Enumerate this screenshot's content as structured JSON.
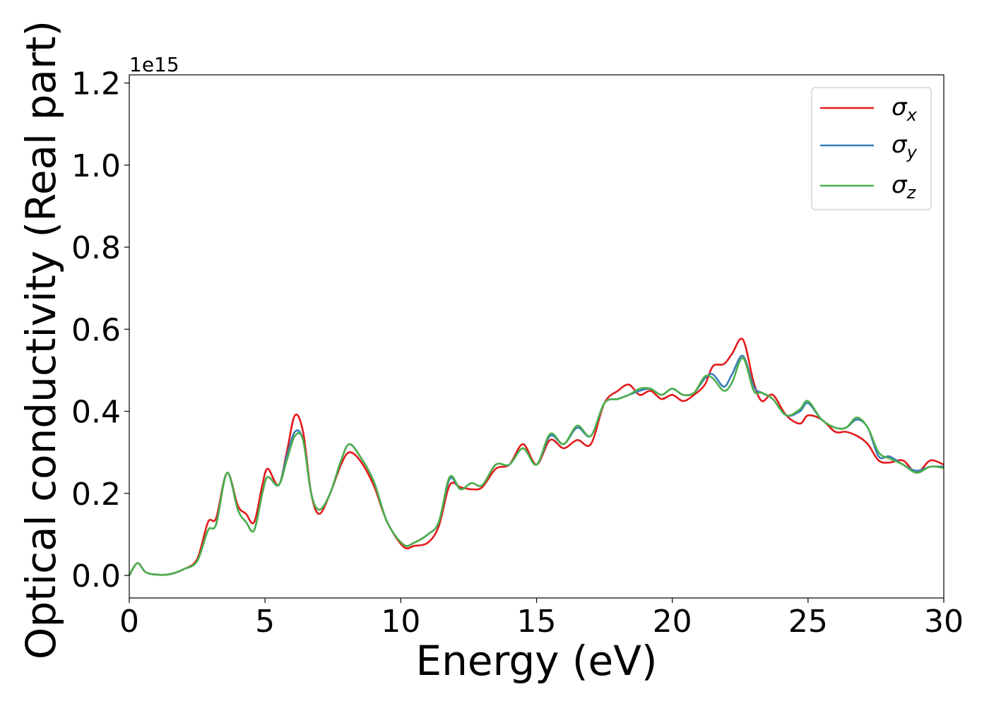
{
  "chart_data": {
    "type": "line",
    "title": "",
    "xlabel": "Energy (eV)",
    "ylabel": "Optical conductivity (Real part)",
    "y_offset_label": "1e15",
    "xlim": [
      0,
      30
    ],
    "ylim": [
      -0.055,
      1.22
    ],
    "xticks": [
      0,
      5,
      10,
      15,
      20,
      25,
      30
    ],
    "xtick_labels": [
      "0",
      "5",
      "10",
      "15",
      "20",
      "25",
      "30"
    ],
    "yticks": [
      0.0,
      0.2,
      0.4,
      0.6,
      0.8,
      1.0,
      1.2
    ],
    "ytick_labels": [
      "0.0",
      "0.2",
      "0.4",
      "0.6",
      "0.8",
      "1.0",
      "1.2"
    ],
    "grid": false,
    "legend_position": "top-right",
    "x": [
      0,
      0.3,
      0.6,
      1.0,
      1.5,
      2.0,
      2.5,
      2.9,
      3.2,
      3.6,
      4.0,
      4.3,
      4.6,
      4.9,
      5.1,
      5.5,
      5.8,
      6.1,
      6.4,
      6.7,
      7.0,
      7.4,
      7.8,
      8.1,
      8.5,
      9.0,
      9.5,
      10.1,
      10.5,
      11.0,
      11.4,
      11.8,
      12.2,
      12.6,
      13.0,
      13.5,
      14.0,
      14.5,
      15.0,
      15.5,
      16.0,
      16.5,
      17.0,
      17.5,
      18.0,
      18.4,
      18.8,
      19.2,
      19.6,
      20.0,
      20.4,
      20.8,
      21.2,
      21.5,
      21.9,
      22.2,
      22.6,
      23.0,
      23.3,
      23.7,
      24.2,
      24.7,
      25.0,
      25.5,
      26.0,
      26.4,
      26.8,
      27.2,
      27.6,
      28.0,
      28.5,
      29.0,
      29.5,
      30.0
    ],
    "series": [
      {
        "name": "σx",
        "color": "#e31a1c",
        "values": [
          0.0,
          0.03,
          0.008,
          0.002,
          0.003,
          0.015,
          0.04,
          0.13,
          0.14,
          0.25,
          0.17,
          0.15,
          0.13,
          0.22,
          0.26,
          0.22,
          0.3,
          0.39,
          0.35,
          0.2,
          0.15,
          0.2,
          0.27,
          0.3,
          0.28,
          0.22,
          0.13,
          0.07,
          0.072,
          0.08,
          0.12,
          0.22,
          0.215,
          0.21,
          0.215,
          0.26,
          0.27,
          0.32,
          0.27,
          0.33,
          0.31,
          0.33,
          0.32,
          0.42,
          0.45,
          0.465,
          0.44,
          0.45,
          0.43,
          0.44,
          0.425,
          0.44,
          0.465,
          0.51,
          0.515,
          0.54,
          0.575,
          0.47,
          0.425,
          0.44,
          0.39,
          0.37,
          0.39,
          0.38,
          0.35,
          0.35,
          0.34,
          0.32,
          0.28,
          0.275,
          0.28,
          0.25,
          0.28,
          0.27
        ]
      },
      {
        "name": "σy",
        "color": "#377eb8",
        "values": [
          0.0,
          0.03,
          0.008,
          0.002,
          0.003,
          0.015,
          0.035,
          0.11,
          0.125,
          0.25,
          0.16,
          0.13,
          0.11,
          0.2,
          0.24,
          0.22,
          0.29,
          0.35,
          0.33,
          0.2,
          0.16,
          0.2,
          0.28,
          0.32,
          0.29,
          0.23,
          0.13,
          0.075,
          0.08,
          0.1,
          0.13,
          0.235,
          0.21,
          0.225,
          0.22,
          0.27,
          0.27,
          0.31,
          0.27,
          0.34,
          0.32,
          0.36,
          0.34,
          0.42,
          0.43,
          0.44,
          0.45,
          0.455,
          0.44,
          0.455,
          0.44,
          0.445,
          0.48,
          0.49,
          0.46,
          0.49,
          0.535,
          0.46,
          0.445,
          0.43,
          0.39,
          0.4,
          0.42,
          0.38,
          0.36,
          0.36,
          0.38,
          0.36,
          0.29,
          0.29,
          0.27,
          0.255,
          0.265,
          0.265
        ]
      },
      {
        "name": "σz",
        "color": "#4daf4a",
        "values": [
          0.0,
          0.03,
          0.008,
          0.002,
          0.003,
          0.015,
          0.035,
          0.11,
          0.125,
          0.25,
          0.16,
          0.13,
          0.11,
          0.2,
          0.24,
          0.22,
          0.28,
          0.34,
          0.33,
          0.2,
          0.16,
          0.2,
          0.28,
          0.32,
          0.29,
          0.23,
          0.13,
          0.075,
          0.08,
          0.1,
          0.13,
          0.24,
          0.21,
          0.225,
          0.22,
          0.27,
          0.27,
          0.31,
          0.27,
          0.345,
          0.32,
          0.365,
          0.34,
          0.42,
          0.43,
          0.44,
          0.455,
          0.455,
          0.44,
          0.455,
          0.44,
          0.445,
          0.485,
          0.48,
          0.45,
          0.47,
          0.53,
          0.45,
          0.445,
          0.43,
          0.39,
          0.405,
          0.425,
          0.38,
          0.36,
          0.36,
          0.385,
          0.36,
          0.3,
          0.285,
          0.27,
          0.25,
          0.265,
          0.262
        ]
      }
    ]
  }
}
